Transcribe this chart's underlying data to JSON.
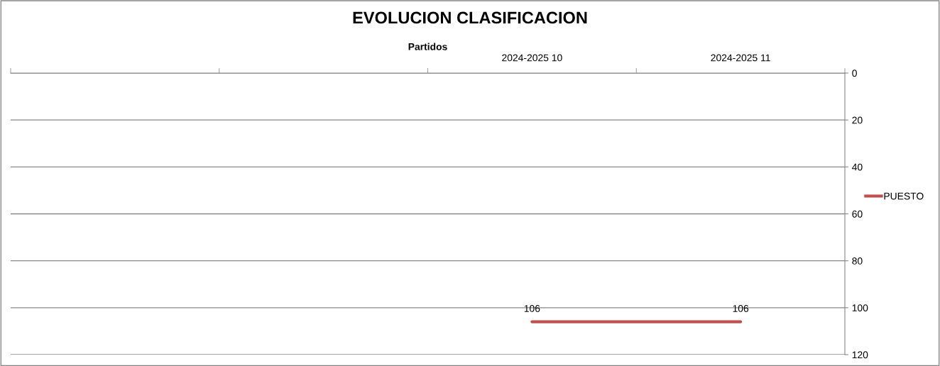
{
  "chart_data": {
    "type": "line",
    "title": "EVOLUCION CLASIFICACION",
    "xlabel": "Partidos",
    "categories": [
      null,
      null,
      "2024-2025 10",
      "2024-2025 11"
    ],
    "series": [
      {
        "name": "PUESTO",
        "color": "#c0504d",
        "values": [
          null,
          null,
          106,
          106
        ]
      }
    ],
    "ylim": [
      120,
      0
    ],
    "yticks": [
      0,
      20,
      40,
      60,
      80,
      100,
      120
    ],
    "grid": "y",
    "legend": "right",
    "data_labels": true,
    "marker": "none",
    "line_style": "solid"
  }
}
